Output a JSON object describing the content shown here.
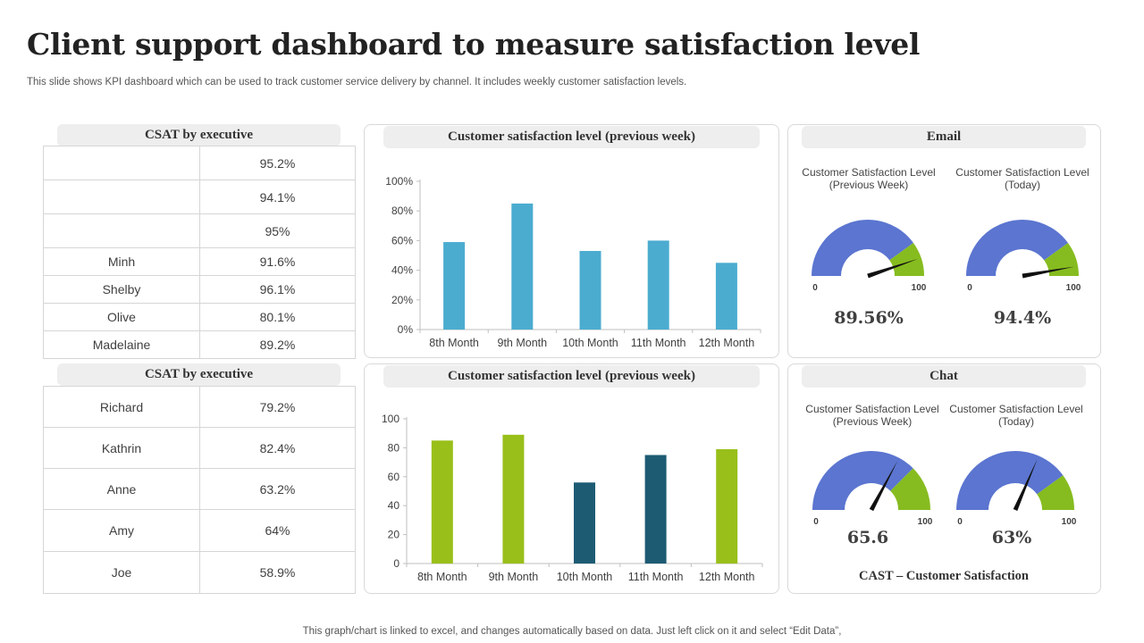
{
  "title": "Client support dashboard to measure satisfaction level",
  "subtitle": "This slide shows KPI dashboard which can be used to track customer service delivery by channel. It includes weekly customer satisfaction levels.",
  "footer": "This graph/chart is linked to excel,  and changes automatically based on data. Just left click on it and select “Edit Data”,",
  "csat_table_1": {
    "header": "CSAT by executive",
    "rows": [
      {
        "name": "",
        "value": "95.2%"
      },
      {
        "name": "",
        "value": "94.1%"
      },
      {
        "name": "",
        "value": "95%"
      },
      {
        "name": "Minh",
        "value": "91.6%"
      },
      {
        "name": "Shelby",
        "value": "96.1%"
      },
      {
        "name": "Olive",
        "value": "80.1%"
      },
      {
        "name": "Madelaine",
        "value": "89.2%"
      }
    ]
  },
  "csat_table_2": {
    "header": "CSAT by executive",
    "rows": [
      {
        "name": "Richard",
        "value": "79.2%"
      },
      {
        "name": "Kathrin",
        "value": "82.4%"
      },
      {
        "name": "Anne",
        "value": "63.2%"
      },
      {
        "name": "Amy",
        "value": "64%"
      },
      {
        "name": "Joe",
        "value": "58.9%"
      }
    ]
  },
  "colors": {
    "bar_blue": "#4bacd0",
    "bar_green": "#99bf1a",
    "bar_teal": "#1d5b73",
    "gauge_blue": "#5b75d0",
    "gauge_green": "#86bc1f"
  },
  "email": {
    "header": "Email",
    "gauges": [
      {
        "label": "Customer Satisfaction Level (Previous Week)",
        "min_label": "0",
        "max_label": "100",
        "display": "89.56%"
      },
      {
        "label": "Customer Satisfaction Level (Today)",
        "min_label": "0",
        "max_label": "100",
        "display": "94.4%"
      }
    ]
  },
  "chat": {
    "header": "Chat",
    "gauges": [
      {
        "label": "Customer Satisfaction Level (Previous Week)",
        "min_label": "0",
        "max_label": "100",
        "display": "65.6"
      },
      {
        "label": "Customer Satisfaction Level (Today)",
        "min_label": "0",
        "max_label": "100",
        "display": "63%"
      }
    ],
    "note": "CAST – Customer Satisfaction"
  },
  "chart_data": [
    {
      "type": "bar",
      "title": "Customer satisfaction level (previous week)",
      "categories": [
        "8th Month",
        "9th Month",
        "10th Month",
        "11th Month",
        "12th Month"
      ],
      "values": [
        59,
        85,
        53,
        60,
        45
      ],
      "ylim": [
        0,
        100
      ],
      "yticks": [
        0,
        20,
        40,
        60,
        80,
        100
      ],
      "ytick_labels": [
        "0%",
        "20%",
        "40%",
        "60%",
        "80%",
        "100%"
      ],
      "bar_colors": [
        "bar_blue",
        "bar_blue",
        "bar_blue",
        "bar_blue",
        "bar_blue"
      ],
      "xlabel": "",
      "ylabel": ""
    },
    {
      "type": "bar",
      "title": "Customer satisfaction level (previous week)",
      "categories": [
        "8th  Month",
        "9th  Month",
        "10th  Month",
        "11th  Month",
        "12th  Month"
      ],
      "values": [
        85,
        89,
        56,
        75,
        79
      ],
      "ylim": [
        0,
        100
      ],
      "yticks": [
        0,
        20,
        40,
        60,
        80,
        100
      ],
      "ytick_labels": [
        "0",
        "20",
        "40",
        "60",
        "80",
        "100"
      ],
      "bar_colors": [
        "bar_green",
        "bar_green",
        "bar_teal",
        "bar_teal",
        "bar_green"
      ],
      "xlabel": "",
      "ylabel": ""
    },
    {
      "type": "gauge",
      "title": "Email – Customer Satisfaction Level (Previous Week)",
      "min": 0,
      "max": 100,
      "segments": [
        80,
        20
      ],
      "needle": 89.56
    },
    {
      "type": "gauge",
      "title": "Email – Customer Satisfaction Level (Today)",
      "min": 0,
      "max": 100,
      "segments": [
        80,
        20
      ],
      "needle": 94.4
    },
    {
      "type": "gauge",
      "title": "Chat – Customer Satisfaction Level (Previous Week)",
      "min": 0,
      "max": 100,
      "segments": [
        75,
        25
      ],
      "needle": 65.6
    },
    {
      "type": "gauge",
      "title": "Chat – Customer Satisfaction Level (Today)",
      "min": 0,
      "max": 100,
      "segments": [
        80,
        20
      ],
      "needle": 63
    }
  ]
}
